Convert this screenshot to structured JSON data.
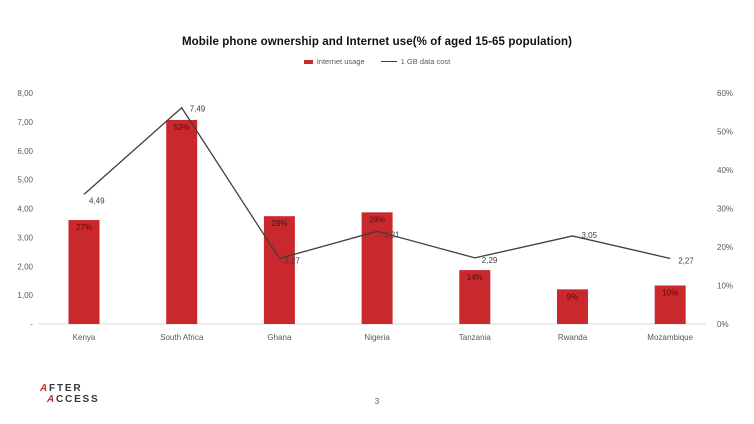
{
  "title": "Mobile phone ownership and Internet use(% of aged 15-65 population)",
  "legend": [
    {
      "label": "Internet usage",
      "type": "bar",
      "color": "#C9282D"
    },
    {
      "label": "1 GB data cost",
      "type": "line",
      "color": "#3F3F3F"
    }
  ],
  "chart_data": {
    "type": "bar+line combo",
    "title": "Mobile phone ownership and Internet use(% of aged 15-65 population)",
    "categories": [
      "Kenya",
      "South Africa",
      "Ghana",
      "Nigeria",
      "Tanzania",
      "Rwanda",
      "Mozambique"
    ],
    "colors": {
      "bar": "#C9282D",
      "line": "#3F3F3F",
      "axis_line": "#D9D9D9"
    },
    "series": [
      {
        "name": "Internet usage",
        "type": "bar",
        "axis": "right",
        "values": [
          27,
          53,
          28,
          29,
          14,
          9,
          10
        ],
        "labels": [
          "27%",
          "53%",
          "28%",
          "29%",
          "14%",
          "9%",
          "10%"
        ]
      },
      {
        "name": "1 GB data cost",
        "type": "line",
        "axis": "left",
        "values": [
          4.49,
          7.49,
          2.27,
          3.21,
          2.29,
          3.05,
          2.27
        ],
        "labels": [
          "4,49",
          "7,49",
          "2,27",
          "3,21",
          "2,29",
          "3,05",
          "2,27"
        ]
      }
    ],
    "left_axis": {
      "min": 0,
      "max": 8,
      "ticks": [
        {
          "label": "8,00",
          "value": 8
        },
        {
          "label": "7,00",
          "value": 7
        },
        {
          "label": "6,00",
          "value": 6
        },
        {
          "label": "5,00",
          "value": 5
        },
        {
          "label": "4,00",
          "value": 4
        },
        {
          "label": "3,00",
          "value": 3
        },
        {
          "label": "2,00",
          "value": 2
        },
        {
          "label": "1,00",
          "value": 1
        },
        {
          "label": "-",
          "value": 0
        }
      ]
    },
    "right_axis": {
      "min": 0,
      "max": 60,
      "ticks": [
        {
          "label": "60%",
          "value": 60
        },
        {
          "label": "50%",
          "value": 50
        },
        {
          "label": "40%",
          "value": 40
        },
        {
          "label": "30%",
          "value": 30
        },
        {
          "label": "20%",
          "value": 20
        },
        {
          "label": "10%",
          "value": 10
        },
        {
          "label": "0%",
          "value": 0
        }
      ]
    },
    "grid": "off",
    "legend_position": "top-center"
  },
  "footer": {
    "logo": {
      "line1_initial": "A",
      "line1_rest": "FTER",
      "line2_initial": "A",
      "line2_rest": "CCESS"
    },
    "page_number": "3"
  }
}
